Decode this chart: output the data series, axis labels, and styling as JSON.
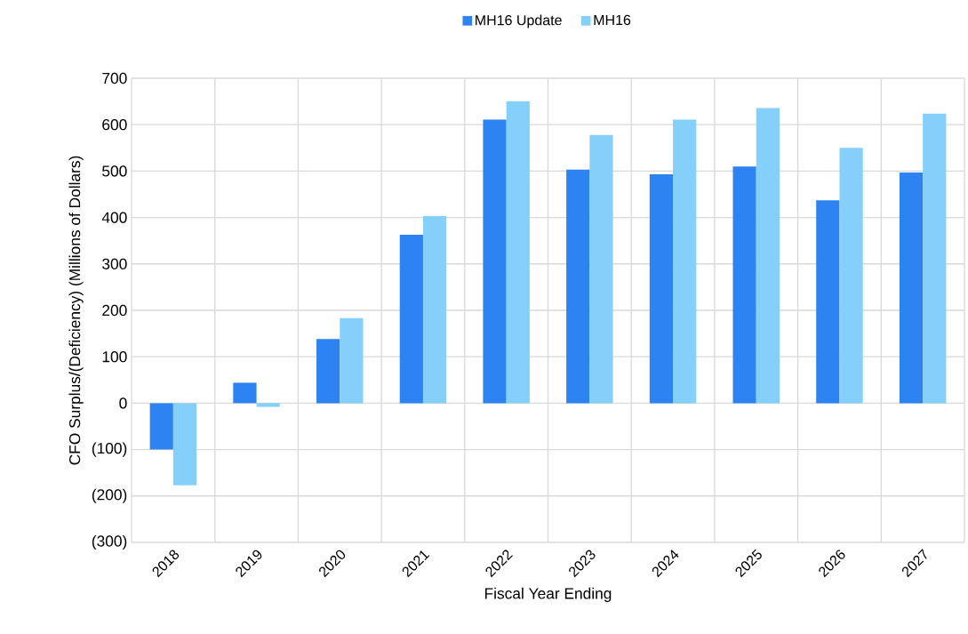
{
  "chart_data": {
    "type": "bar",
    "xlabel": "Fiscal Year Ending",
    "ylabel": "CFO Surplus/(Deficiency) (Millions of Dollars)",
    "categories": [
      "2018",
      "2019",
      "2020",
      "2021",
      "2022",
      "2023",
      "2024",
      "2025",
      "2026",
      "2027"
    ],
    "series": [
      {
        "name": "MH16 Update",
        "color": "#2e83f2",
        "values": [
          -100,
          44,
          138,
          363,
          611,
          503,
          493,
          510,
          437,
          497
        ]
      },
      {
        "name": "MH16",
        "color": "#84d0fb",
        "values": [
          -177,
          -8,
          183,
          403,
          650,
          578,
          611,
          636,
          550,
          624
        ]
      }
    ],
    "ylim": [
      -300,
      700
    ],
    "yticks": [
      {
        "value": -300,
        "label": "(300)"
      },
      {
        "value": -200,
        "label": "(200)"
      },
      {
        "value": -100,
        "label": "(100)"
      },
      0,
      100,
      200,
      300,
      400,
      500,
      600,
      700
    ],
    "grid": true,
    "legend": "top"
  }
}
